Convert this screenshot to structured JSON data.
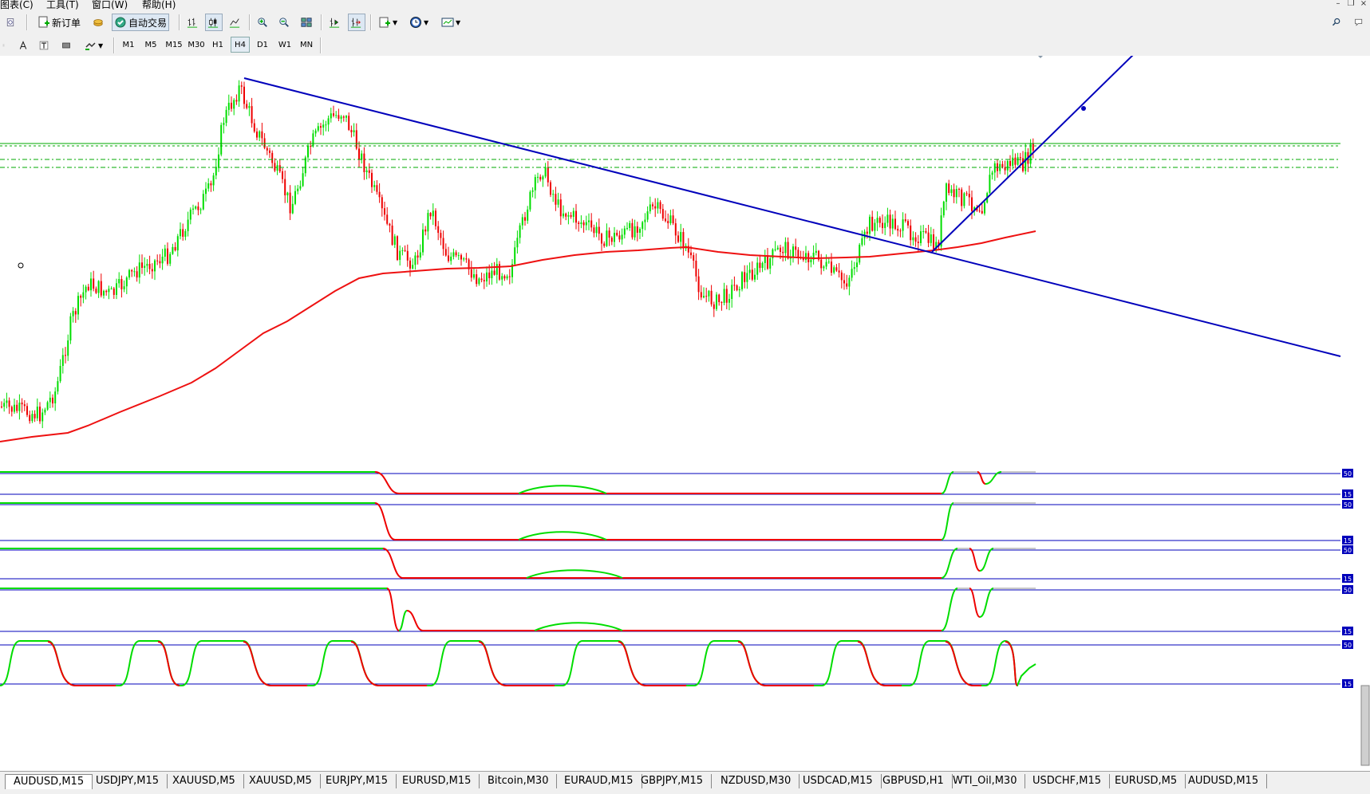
{
  "menu": {
    "items": [
      "图表(C)",
      "工具(T)",
      "窗口(W)",
      "帮助(H)"
    ]
  },
  "toolbar": {
    "new_order_label": "新订单",
    "auto_trade_label": "自动交易"
  },
  "timeframes": {
    "items": [
      "M1",
      "M5",
      "M15",
      "M30",
      "H1",
      "H4",
      "D1",
      "W1",
      "MN"
    ],
    "selected": "H4"
  },
  "chart": {
    "bull_color": "#00dd00",
    "bear_color": "#ee0000",
    "ma_color": "#ee1111",
    "trendline_color": "#0000bb",
    "level_color": "#00aa00",
    "indicator_scale_labels": [
      "50",
      "15",
      "50",
      "15",
      "50",
      "15",
      "50",
      "15",
      "50",
      "15"
    ]
  },
  "symbol_tabs": {
    "items": [
      "AUDUSD,M15",
      "USDJPY,M15",
      "XAUUSD,M5",
      "XAUUSD,M5",
      "EURJPY,M15",
      "EURUSD,M15",
      "Bitcoin,M30",
      "EURAUD,M15",
      "GBPJPY,M15",
      "NZDUSD,M30",
      "USDCAD,M15",
      "GBPUSD,H1",
      "WTI_Oil,M30",
      "USDCHF,M15",
      "EURUSD,M5",
      "AUDUSD,M15"
    ],
    "active_index": 0
  }
}
